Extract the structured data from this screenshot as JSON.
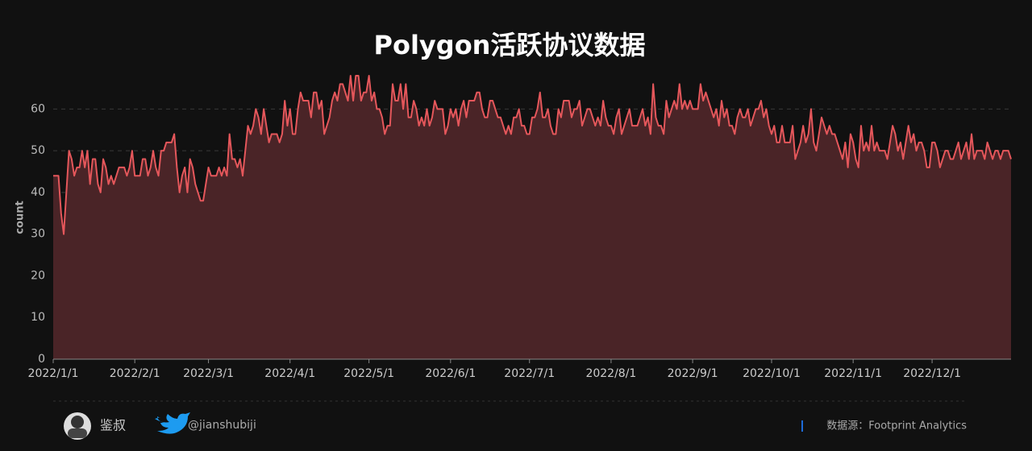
{
  "chart_data": {
    "type": "area",
    "title": "Polygon活跃协议数据",
    "ylabel": "count",
    "x": [
      "2022/1/1",
      "2022/1/2",
      "2022/1/3",
      "2022/1/4",
      "2022/1/5",
      "2022/1/6",
      "2022/1/7",
      "2022/1/8",
      "2022/1/9",
      "2022/1/10",
      "2022/1/11",
      "2022/1/12",
      "2022/1/13",
      "2022/1/14",
      "2022/1/15",
      "2022/1/16",
      "2022/1/17",
      "2022/1/18",
      "2022/1/19",
      "2022/1/20",
      "2022/1/21",
      "2022/1/22",
      "2022/1/23",
      "2022/1/24",
      "2022/1/25",
      "2022/1/26",
      "2022/1/27",
      "2022/1/28",
      "2022/1/29",
      "2022/1/30",
      "2022/1/31",
      "2022/2/1",
      "2022/2/2",
      "2022/2/3",
      "2022/2/4",
      "2022/2/5",
      "2022/2/6",
      "2022/2/7",
      "2022/2/8",
      "2022/2/9",
      "2022/2/10",
      "2022/2/11",
      "2022/2/12",
      "2022/2/13",
      "2022/2/14",
      "2022/2/15",
      "2022/2/16",
      "2022/2/17",
      "2022/2/18",
      "2022/2/19",
      "2022/2/20",
      "2022/2/21",
      "2022/2/22",
      "2022/2/23",
      "2022/2/24",
      "2022/2/25",
      "2022/2/26",
      "2022/2/27",
      "2022/2/28",
      "2022/3/1",
      "2022/3/2",
      "2022/3/3",
      "2022/3/4",
      "2022/3/5",
      "2022/3/6",
      "2022/3/7",
      "2022/3/8",
      "2022/3/9",
      "2022/3/10",
      "2022/3/11",
      "2022/3/12",
      "2022/3/13",
      "2022/3/14",
      "2022/3/15",
      "2022/3/16",
      "2022/3/17",
      "2022/3/18",
      "2022/3/19",
      "2022/3/20",
      "2022/3/21",
      "2022/3/22",
      "2022/3/23",
      "2022/3/24",
      "2022/3/25",
      "2022/3/26",
      "2022/3/27",
      "2022/3/28",
      "2022/3/29",
      "2022/3/30",
      "2022/3/31",
      "2022/4/1",
      "2022/4/2",
      "2022/4/3",
      "2022/4/4",
      "2022/4/5",
      "2022/4/6",
      "2022/4/7",
      "2022/4/8",
      "2022/4/9",
      "2022/4/10",
      "2022/4/11",
      "2022/4/12",
      "2022/4/13",
      "2022/4/14",
      "2022/4/15",
      "2022/4/16",
      "2022/4/17",
      "2022/4/18",
      "2022/4/19",
      "2022/4/20",
      "2022/4/21",
      "2022/4/22",
      "2022/4/23",
      "2022/4/24",
      "2022/4/25",
      "2022/4/26",
      "2022/4/27",
      "2022/4/28",
      "2022/4/29",
      "2022/4/30",
      "2022/5/1",
      "2022/5/2",
      "2022/5/3",
      "2022/5/4",
      "2022/5/5",
      "2022/5/6",
      "2022/5/7",
      "2022/5/8",
      "2022/5/9",
      "2022/5/10",
      "2022/5/11",
      "2022/5/12",
      "2022/5/13",
      "2022/5/14",
      "2022/5/15",
      "2022/5/16",
      "2022/5/17",
      "2022/5/18",
      "2022/5/19",
      "2022/5/20",
      "2022/5/21",
      "2022/5/22",
      "2022/5/23",
      "2022/5/24",
      "2022/5/25",
      "2022/5/26",
      "2022/5/27",
      "2022/5/28",
      "2022/5/29",
      "2022/5/30",
      "2022/5/31",
      "2022/6/1",
      "2022/6/2",
      "2022/6/3",
      "2022/6/4",
      "2022/6/5",
      "2022/6/6",
      "2022/6/7",
      "2022/6/8",
      "2022/6/9",
      "2022/6/10",
      "2022/6/11",
      "2022/6/12",
      "2022/6/13",
      "2022/6/14",
      "2022/6/15",
      "2022/6/16",
      "2022/6/17",
      "2022/6/18",
      "2022/6/19",
      "2022/6/20",
      "2022/6/21",
      "2022/6/22",
      "2022/6/23",
      "2022/6/24",
      "2022/6/25",
      "2022/6/26",
      "2022/6/27",
      "2022/6/28",
      "2022/6/29",
      "2022/6/30",
      "2022/7/1",
      "2022/7/2",
      "2022/7/3",
      "2022/7/4",
      "2022/7/5",
      "2022/7/6",
      "2022/7/7",
      "2022/7/8",
      "2022/7/9",
      "2022/7/10",
      "2022/7/11",
      "2022/7/12",
      "2022/7/13",
      "2022/7/14",
      "2022/7/15",
      "2022/7/16",
      "2022/7/17",
      "2022/7/18",
      "2022/7/19",
      "2022/7/20",
      "2022/7/21",
      "2022/7/22",
      "2022/7/23",
      "2022/7/24",
      "2022/7/25",
      "2022/7/26",
      "2022/7/27",
      "2022/7/28",
      "2022/7/29",
      "2022/7/30",
      "2022/7/31",
      "2022/8/1",
      "2022/8/2",
      "2022/8/3",
      "2022/8/4",
      "2022/8/5",
      "2022/8/6",
      "2022/8/7",
      "2022/8/8",
      "2022/8/9",
      "2022/8/10",
      "2022/8/11",
      "2022/8/12",
      "2022/8/13",
      "2022/8/14",
      "2022/8/15",
      "2022/8/16",
      "2022/8/17",
      "2022/8/18",
      "2022/8/19",
      "2022/8/20",
      "2022/8/21",
      "2022/8/22",
      "2022/8/23",
      "2022/8/24",
      "2022/8/25",
      "2022/8/26",
      "2022/8/27",
      "2022/8/28",
      "2022/8/29",
      "2022/8/30",
      "2022/8/31",
      "2022/9/1",
      "2022/9/2",
      "2022/9/3",
      "2022/9/4",
      "2022/9/5",
      "2022/9/6",
      "2022/9/7",
      "2022/9/8",
      "2022/9/9",
      "2022/9/10",
      "2022/9/11",
      "2022/9/12",
      "2022/9/13",
      "2022/9/14",
      "2022/9/15",
      "2022/9/16",
      "2022/9/17",
      "2022/9/18",
      "2022/9/19",
      "2022/9/20",
      "2022/9/21",
      "2022/9/22",
      "2022/9/23",
      "2022/9/24",
      "2022/9/25",
      "2022/9/26",
      "2022/9/27",
      "2022/9/28",
      "2022/9/29",
      "2022/9/30",
      "2022/10/1",
      "2022/10/2",
      "2022/10/3",
      "2022/10/4",
      "2022/10/5",
      "2022/10/6",
      "2022/10/7",
      "2022/10/8",
      "2022/10/9",
      "2022/10/10",
      "2022/10/11",
      "2022/10/12",
      "2022/10/13",
      "2022/10/14",
      "2022/10/15",
      "2022/10/16",
      "2022/10/17",
      "2022/10/18",
      "2022/10/19",
      "2022/10/20",
      "2022/10/21",
      "2022/10/22",
      "2022/10/23",
      "2022/10/24",
      "2022/10/25",
      "2022/10/26",
      "2022/10/27",
      "2022/10/28",
      "2022/10/29",
      "2022/10/30",
      "2022/10/31",
      "2022/11/1",
      "2022/11/2",
      "2022/11/3",
      "2022/11/4",
      "2022/11/5",
      "2022/11/6",
      "2022/11/7",
      "2022/11/8",
      "2022/11/9",
      "2022/11/10",
      "2022/11/11",
      "2022/11/12",
      "2022/11/13",
      "2022/11/14",
      "2022/11/15",
      "2022/11/16",
      "2022/11/17",
      "2022/11/18",
      "2022/11/19",
      "2022/11/20",
      "2022/11/21",
      "2022/11/22",
      "2022/11/23",
      "2022/11/24",
      "2022/11/25",
      "2022/11/26",
      "2022/11/27",
      "2022/11/28",
      "2022/11/29",
      "2022/11/30",
      "2022/12/1",
      "2022/12/2",
      "2022/12/3",
      "2022/12/4",
      "2022/12/5",
      "2022/12/6",
      "2022/12/7",
      "2022/12/8",
      "2022/12/9",
      "2022/12/10",
      "2022/12/11",
      "2022/12/12",
      "2022/12/13",
      "2022/12/14",
      "2022/12/15",
      "2022/12/16",
      "2022/12/17",
      "2022/12/18",
      "2022/12/19",
      "2022/12/20",
      "2022/12/21",
      "2022/12/22",
      "2022/12/23",
      "2022/12/24",
      "2022/12/25",
      "2022/12/26",
      "2022/12/27",
      "2022/12/28",
      "2022/12/29",
      "2022/12/30",
      "2022/12/31"
    ],
    "series": [
      {
        "color": "#e5575b",
        "fill": "#4a2427",
        "values": [
          44,
          44,
          44,
          35,
          30,
          40,
          50,
          48,
          44,
          46,
          46,
          50,
          46,
          50,
          42,
          48,
          48,
          42,
          40,
          48,
          46,
          42,
          44,
          42,
          44,
          46,
          46,
          46,
          44,
          46,
          50,
          44,
          44,
          44,
          48,
          48,
          44,
          46,
          50,
          46,
          44,
          50,
          50,
          52,
          52,
          52,
          54,
          46,
          40,
          44,
          46,
          40,
          48,
          46,
          42,
          40,
          38,
          38,
          42,
          46,
          44,
          44,
          44,
          46,
          44,
          46,
          44,
          54,
          48,
          48,
          46,
          48,
          44,
          50,
          56,
          54,
          56,
          60,
          58,
          54,
          60,
          56,
          52,
          54,
          54,
          54,
          52,
          54,
          62,
          56,
          60,
          54,
          54,
          60,
          64,
          62,
          62,
          62,
          58,
          64,
          64,
          60,
          62,
          54,
          56,
          58,
          62,
          64,
          62,
          66,
          66,
          64,
          62,
          68,
          62,
          68,
          68,
          62,
          64,
          64,
          68,
          62,
          64,
          60,
          60,
          58,
          54,
          56,
          56,
          66,
          62,
          62,
          66,
          60,
          66,
          58,
          58,
          62,
          60,
          56,
          58,
          56,
          60,
          56,
          58,
          62,
          60,
          60,
          60,
          54,
          56,
          60,
          58,
          60,
          56,
          60,
          62,
          58,
          62,
          62,
          62,
          64,
          64,
          60,
          58,
          58,
          62,
          62,
          60,
          58,
          58,
          56,
          54,
          56,
          54,
          58,
          58,
          60,
          56,
          56,
          54,
          54,
          58,
          58,
          60,
          64,
          58,
          58,
          60,
          56,
          54,
          54,
          60,
          58,
          62,
          62,
          62,
          58,
          60,
          60,
          62,
          56,
          58,
          60,
          60,
          58,
          56,
          58,
          56,
          62,
          58,
          56,
          56,
          54,
          58,
          60,
          54,
          56,
          58,
          60,
          56,
          56,
          56,
          58,
          60,
          56,
          58,
          54,
          66,
          58,
          56,
          56,
          54,
          62,
          58,
          60,
          62,
          60,
          66,
          60,
          62,
          60,
          62,
          60,
          60,
          60,
          66,
          62,
          64,
          62,
          60,
          58,
          60,
          56,
          62,
          58,
          60,
          56,
          56,
          54,
          58,
          60,
          58,
          58,
          60,
          56,
          58,
          60,
          60,
          62,
          58,
          60,
          56,
          54,
          56,
          52,
          52,
          56,
          52,
          52,
          52,
          56,
          48,
          50,
          52,
          56,
          52,
          54,
          60,
          52,
          50,
          54,
          58,
          56,
          54,
          56,
          54,
          54,
          52,
          50,
          48,
          52,
          46,
          54,
          52,
          48,
          46,
          56,
          50,
          52,
          50,
          56,
          50,
          52,
          50,
          50,
          50,
          48,
          52,
          56,
          54,
          50,
          52,
          48,
          52,
          56,
          52,
          54,
          50,
          52,
          52,
          50,
          46,
          46,
          52,
          52,
          50,
          46,
          48,
          50,
          50,
          48,
          48,
          50,
          52,
          48,
          50,
          52,
          48,
          54,
          48,
          50,
          50,
          50,
          48,
          52,
          50,
          48,
          50,
          50,
          48,
          50,
          50,
          50,
          48
        ]
      }
    ],
    "xticks": [
      "2022/1/1",
      "2022/2/1",
      "2022/3/1",
      "2022/4/1",
      "2022/5/1",
      "2022/6/1",
      "2022/7/1",
      "2022/8/1",
      "2022/9/1",
      "2022/10/1",
      "2022/11/1",
      "2022/12/1"
    ],
    "ylim": [
      0,
      68
    ],
    "yticks": [
      0,
      10,
      20,
      30,
      40,
      50,
      60
    ],
    "grid": true
  },
  "footer": {
    "author": "鉴叔",
    "twitter": "@jianshubiji",
    "source": "数据源：Footprint  Analytics"
  }
}
